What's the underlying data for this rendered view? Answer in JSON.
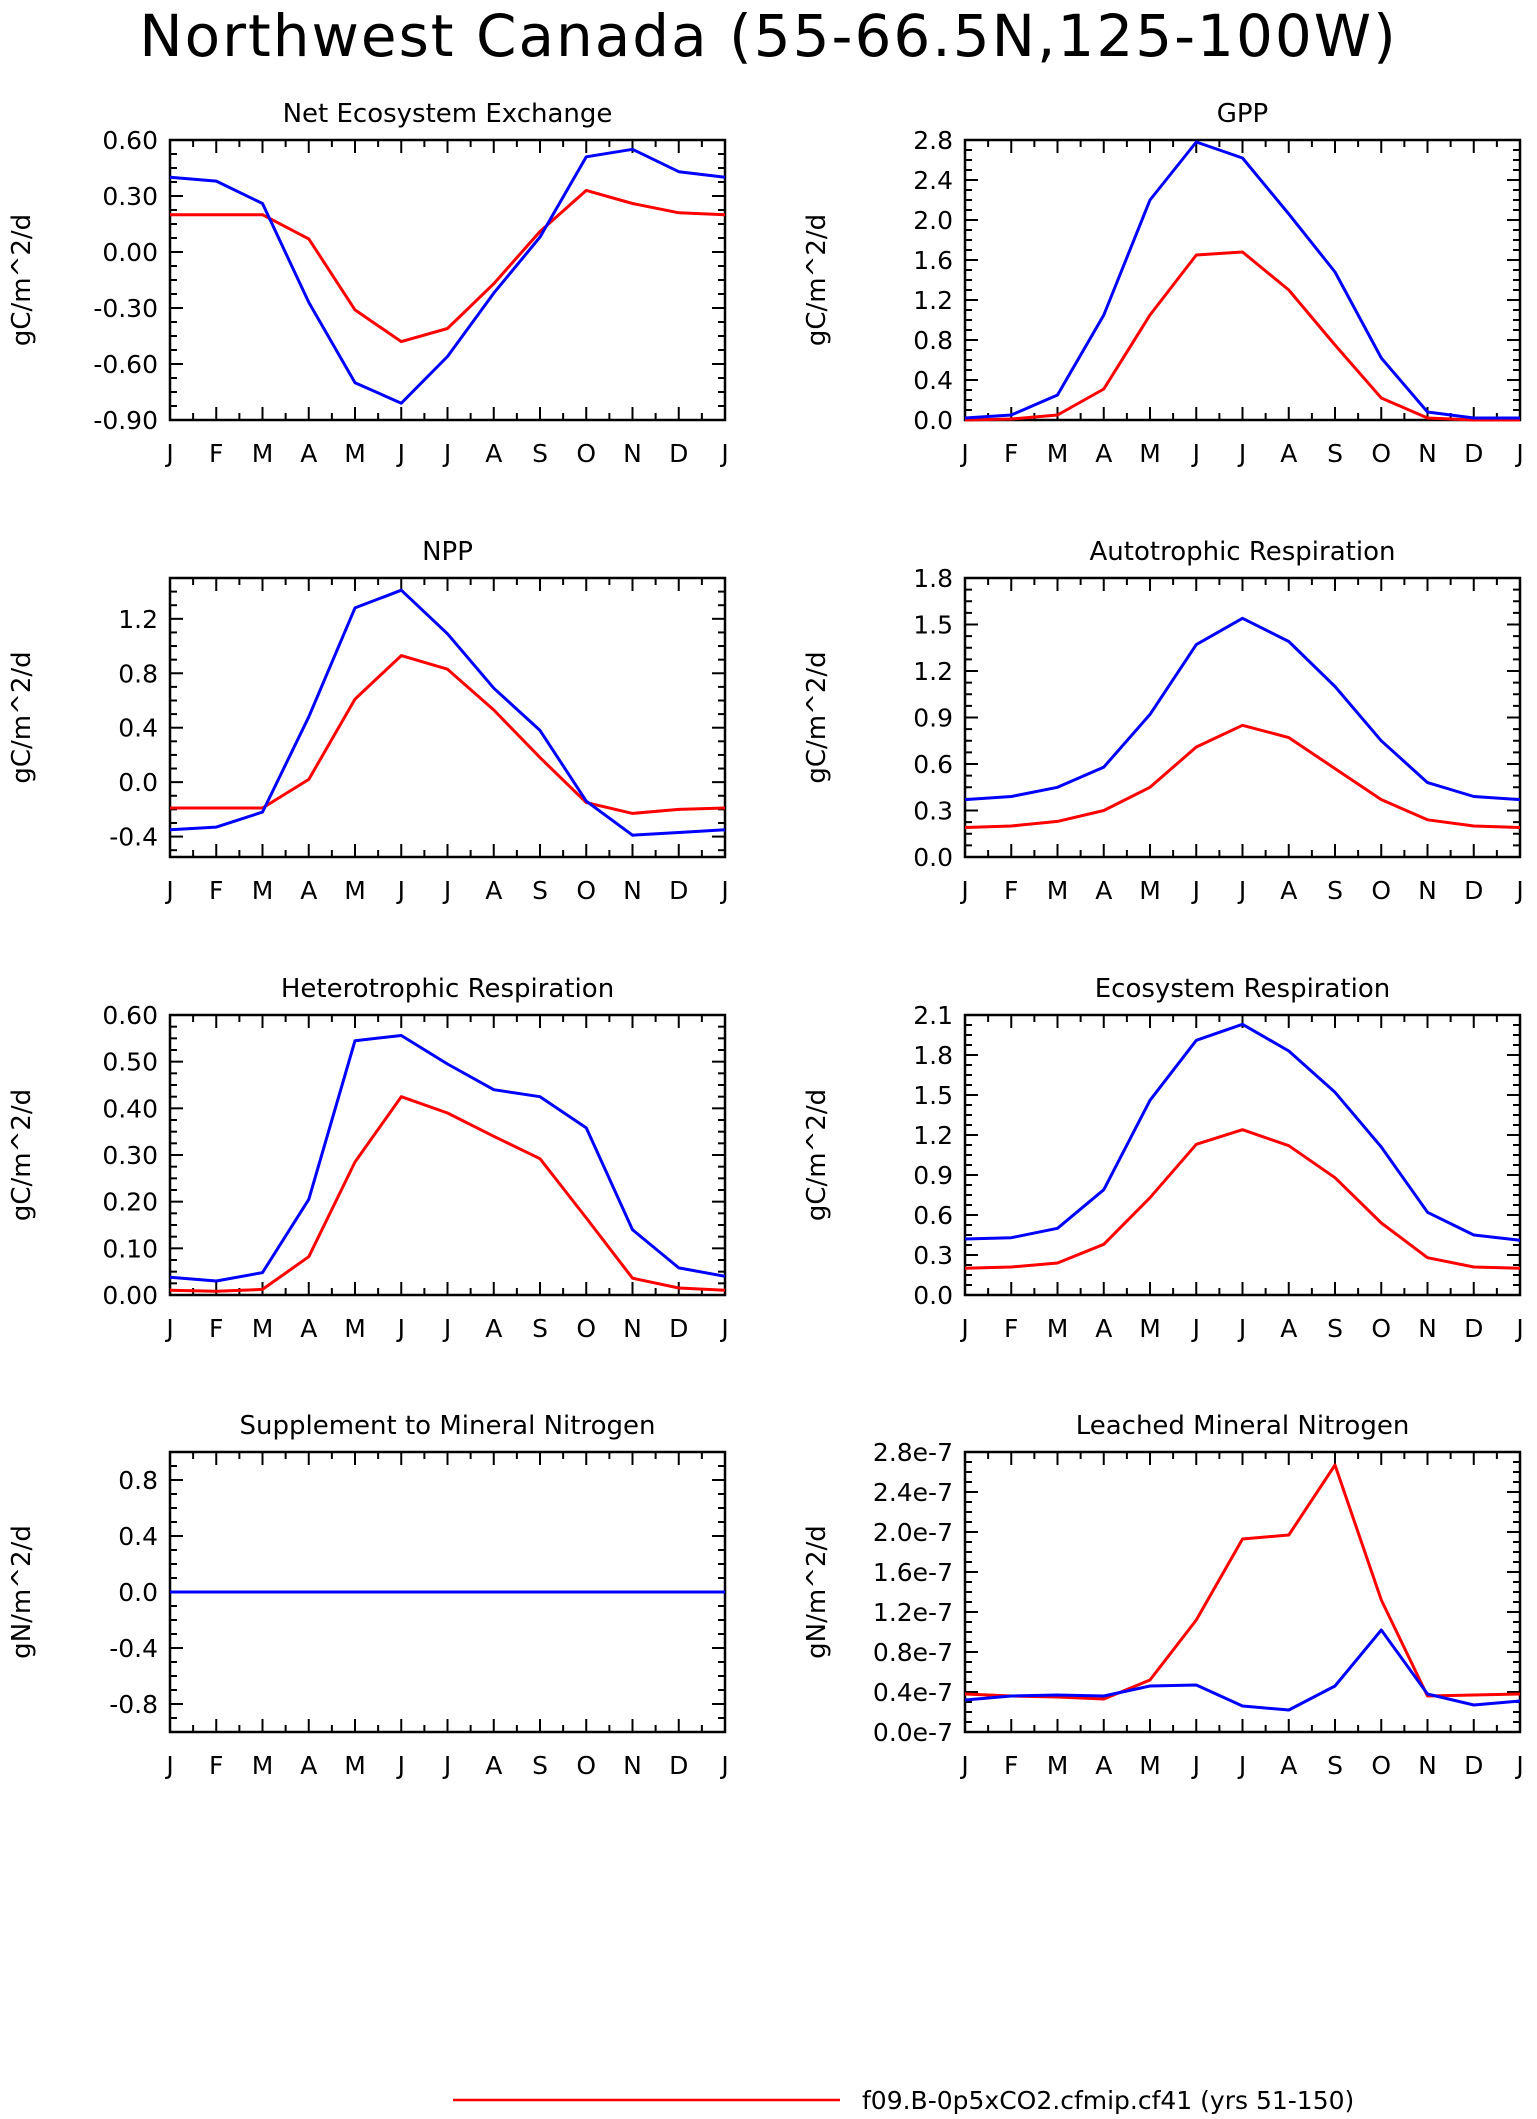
{
  "title": "Northwest Canada (55-66.5N,125-100W)",
  "colors": {
    "series_red": "#ff0000",
    "series_blue": "#0000ff",
    "axis": "#000000"
  },
  "legend": [
    {
      "label": "f09.B-0p5xCO2.cfmip.cf41 (yrs 51-150)",
      "color": "#ff0000"
    }
  ],
  "chart_data": [
    {
      "type": "line",
      "title": "Net Ecosystem Exchange",
      "ylabel": "gC/m^2/d",
      "categories": [
        "J",
        "F",
        "M",
        "A",
        "M",
        "J",
        "J",
        "A",
        "S",
        "O",
        "N",
        "D",
        "J"
      ],
      "ylim": [
        -0.9,
        0.6
      ],
      "yticks": [
        "0.60",
        "0.30",
        "0.00",
        "-0.30",
        "-0.60",
        "-0.90"
      ],
      "ytick_values": [
        0.6,
        0.3,
        0.0,
        -0.3,
        -0.6,
        -0.9
      ],
      "series": [
        {
          "color": "#ff0000",
          "values": [
            0.2,
            0.2,
            0.2,
            0.07,
            -0.31,
            -0.48,
            -0.41,
            -0.17,
            0.11,
            0.33,
            0.26,
            0.21,
            0.2
          ]
        },
        {
          "color": "#0000ff",
          "values": [
            0.4,
            0.38,
            0.26,
            -0.27,
            -0.7,
            -0.81,
            -0.56,
            -0.22,
            0.08,
            0.51,
            0.55,
            0.43,
            0.4
          ]
        }
      ]
    },
    {
      "type": "line",
      "title": "GPP",
      "ylabel": "gC/m^2/d",
      "categories": [
        "J",
        "F",
        "M",
        "A",
        "M",
        "J",
        "J",
        "A",
        "S",
        "O",
        "N",
        "D",
        "J"
      ],
      "ylim": [
        0.0,
        2.8
      ],
      "yticks": [
        "2.8",
        "2.4",
        "2.0",
        "1.6",
        "1.2",
        "0.8",
        "0.4",
        "0.0"
      ],
      "ytick_values": [
        2.8,
        2.4,
        2.0,
        1.6,
        1.2,
        0.8,
        0.4,
        0.0
      ],
      "series": [
        {
          "color": "#ff0000",
          "values": [
            0.0,
            0.01,
            0.05,
            0.31,
            1.05,
            1.65,
            1.68,
            1.3,
            0.75,
            0.22,
            0.02,
            0.0,
            0.0
          ]
        },
        {
          "color": "#0000ff",
          "values": [
            0.02,
            0.05,
            0.25,
            1.05,
            2.2,
            2.78,
            2.62,
            2.06,
            1.48,
            0.62,
            0.08,
            0.02,
            0.02
          ]
        }
      ]
    },
    {
      "type": "line",
      "title": "NPP",
      "ylabel": "gC/m^2/d",
      "categories": [
        "J",
        "F",
        "M",
        "A",
        "M",
        "J",
        "J",
        "A",
        "S",
        "O",
        "N",
        "D",
        "J"
      ],
      "ylim": [
        -0.55,
        1.5
      ],
      "yticks": [
        "1.2",
        "0.8",
        "0.4",
        "0.0",
        "-0.4"
      ],
      "ytick_values": [
        1.2,
        0.8,
        0.4,
        0.0,
        -0.4
      ],
      "series": [
        {
          "color": "#ff0000",
          "values": [
            -0.19,
            -0.19,
            -0.19,
            0.02,
            0.61,
            0.93,
            0.83,
            0.53,
            0.18,
            -0.15,
            -0.23,
            -0.2,
            -0.19
          ]
        },
        {
          "color": "#0000ff",
          "values": [
            -0.35,
            -0.33,
            -0.22,
            0.48,
            1.28,
            1.41,
            1.09,
            0.69,
            0.38,
            -0.14,
            -0.39,
            -0.37,
            -0.35
          ]
        }
      ]
    },
    {
      "type": "line",
      "title": "Autotrophic Respiration",
      "ylabel": "gC/m^2/d",
      "categories": [
        "J",
        "F",
        "M",
        "A",
        "M",
        "J",
        "J",
        "A",
        "S",
        "O",
        "N",
        "D",
        "J"
      ],
      "ylim": [
        0.0,
        1.8
      ],
      "yticks": [
        "1.8",
        "1.5",
        "1.2",
        "0.9",
        "0.6",
        "0.3",
        "0.0"
      ],
      "ytick_values": [
        1.8,
        1.5,
        1.2,
        0.9,
        0.6,
        0.3,
        0.0
      ],
      "series": [
        {
          "color": "#ff0000",
          "values": [
            0.19,
            0.2,
            0.23,
            0.3,
            0.45,
            0.71,
            0.85,
            0.77,
            0.57,
            0.37,
            0.24,
            0.2,
            0.19
          ]
        },
        {
          "color": "#0000ff",
          "values": [
            0.37,
            0.39,
            0.45,
            0.58,
            0.92,
            1.37,
            1.54,
            1.39,
            1.1,
            0.75,
            0.48,
            0.39,
            0.37
          ]
        }
      ]
    },
    {
      "type": "line",
      "title": "Heterotrophic Respiration",
      "ylabel": "gC/m^2/d",
      "categories": [
        "J",
        "F",
        "M",
        "A",
        "M",
        "J",
        "J",
        "A",
        "S",
        "O",
        "N",
        "D",
        "J"
      ],
      "ylim": [
        0.0,
        0.6
      ],
      "yticks": [
        "0.60",
        "0.50",
        "0.40",
        "0.30",
        "0.20",
        "0.10",
        "0.00"
      ],
      "ytick_values": [
        0.6,
        0.5,
        0.4,
        0.3,
        0.2,
        0.1,
        0.0
      ],
      "series": [
        {
          "color": "#ff0000",
          "values": [
            0.01,
            0.008,
            0.012,
            0.082,
            0.285,
            0.425,
            0.39,
            0.34,
            0.292,
            0.165,
            0.036,
            0.015,
            0.01
          ]
        },
        {
          "color": "#0000ff",
          "values": [
            0.038,
            0.03,
            0.048,
            0.205,
            0.545,
            0.556,
            0.495,
            0.44,
            0.425,
            0.358,
            0.14,
            0.058,
            0.04
          ]
        }
      ]
    },
    {
      "type": "line",
      "title": "Ecosystem Respiration",
      "ylabel": "gC/m^2/d",
      "categories": [
        "J",
        "F",
        "M",
        "A",
        "M",
        "J",
        "J",
        "A",
        "S",
        "O",
        "N",
        "D",
        "J"
      ],
      "ylim": [
        0.0,
        2.1
      ],
      "yticks": [
        "2.1",
        "1.8",
        "1.5",
        "1.2",
        "0.9",
        "0.6",
        "0.3",
        "0.0"
      ],
      "ytick_values": [
        2.1,
        1.8,
        1.5,
        1.2,
        0.9,
        0.6,
        0.3,
        0.0
      ],
      "series": [
        {
          "color": "#ff0000",
          "values": [
            0.2,
            0.21,
            0.24,
            0.38,
            0.73,
            1.13,
            1.24,
            1.12,
            0.88,
            0.54,
            0.28,
            0.21,
            0.2
          ]
        },
        {
          "color": "#0000ff",
          "values": [
            0.42,
            0.43,
            0.5,
            0.79,
            1.46,
            1.91,
            2.03,
            1.83,
            1.52,
            1.11,
            0.62,
            0.45,
            0.41
          ]
        }
      ]
    },
    {
      "type": "line",
      "title": "Supplement to Mineral Nitrogen",
      "ylabel": "gN/m^2/d",
      "categories": [
        "J",
        "F",
        "M",
        "A",
        "M",
        "J",
        "J",
        "A",
        "S",
        "O",
        "N",
        "D",
        "J"
      ],
      "ylim": [
        -1.0,
        1.0
      ],
      "yticks": [
        "0.8",
        "0.4",
        "0.0",
        "-0.4",
        "-0.8"
      ],
      "ytick_values": [
        0.8,
        0.4,
        0.0,
        -0.4,
        -0.8
      ],
      "series": [
        {
          "color": "#ff0000",
          "values": [
            0,
            0,
            0,
            0,
            0,
            0,
            0,
            0,
            0,
            0,
            0,
            0,
            0
          ]
        },
        {
          "color": "#0000ff",
          "values": [
            0,
            0,
            0,
            0,
            0,
            0,
            0,
            0,
            0,
            0,
            0,
            0,
            0
          ]
        }
      ]
    },
    {
      "type": "line",
      "title": "Leached Mineral Nitrogen",
      "ylabel": "gN/m^2/d",
      "categories": [
        "J",
        "F",
        "M",
        "A",
        "M",
        "J",
        "J",
        "A",
        "S",
        "O",
        "N",
        "D",
        "J"
      ],
      "ylim": [
        0.0,
        2.8e-07
      ],
      "yticks": [
        "2.8e-7",
        "2.4e-7",
        "2.0e-7",
        "1.6e-7",
        "1.2e-7",
        "0.8e-7",
        "0.4e-7",
        "0.0e-7"
      ],
      "ytick_values": [
        2.8e-07,
        2.4e-07,
        2e-07,
        1.6e-07,
        1.2e-07,
        8e-08,
        4e-08,
        0.0
      ],
      "series": [
        {
          "color": "#ff0000",
          "values": [
            3.8e-08,
            3.6e-08,
            3.5e-08,
            3.3e-08,
            5.2e-08,
            1.12e-07,
            1.93e-07,
            1.97e-07,
            2.67e-07,
            1.32e-07,
            3.6e-08,
            3.7e-08,
            3.8e-08
          ]
        },
        {
          "color": "#0000ff",
          "values": [
            3.2e-08,
            3.6e-08,
            3.7e-08,
            3.6e-08,
            4.6e-08,
            4.7e-08,
            2.6e-08,
            2.2e-08,
            4.6e-08,
            1.02e-07,
            3.8e-08,
            2.7e-08,
            3.1e-08
          ]
        }
      ]
    }
  ]
}
